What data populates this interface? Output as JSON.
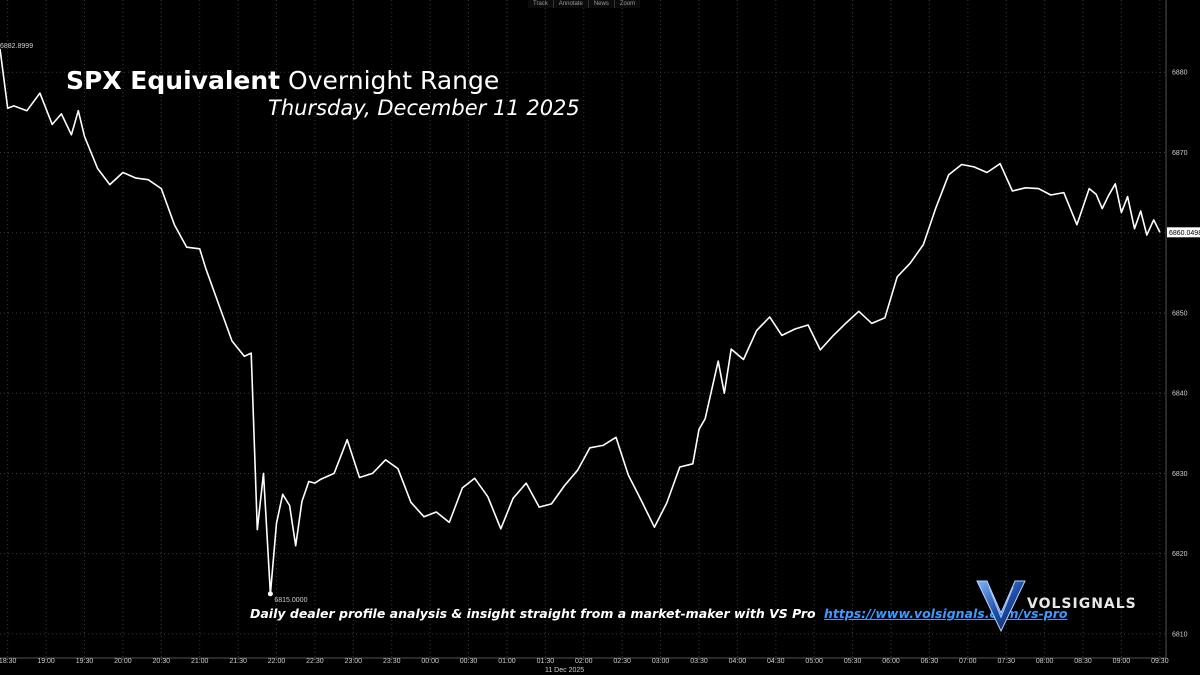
{
  "toolbar": [
    "Track",
    "Annotate",
    "News",
    "Zoom"
  ],
  "title": {
    "bold": "SPX Equivalent",
    "regular": "Overnight Range"
  },
  "subtitle": "Thursday, December 11 2025",
  "promo": {
    "text": "Daily dealer profile analysis & insight straight from a market-maker with VS Pro",
    "link": "https://www.volsignals.com/vs-pro"
  },
  "logo": {
    "text": "VOLSIGNALS",
    "mark": "V"
  },
  "colors": {
    "background": "#000000",
    "line": "#ffffff",
    "grid": "#3a3a3a",
    "link": "#3d9bff"
  },
  "chart_data": {
    "type": "line",
    "title": "SPX Equivalent Overnight Range",
    "subtitle": "Thursday, December 11 2025",
    "xlabel": "11 Dec 2025",
    "ylabel": "",
    "x_ticks": [
      "18:30",
      "19:00",
      "19:30",
      "20:00",
      "20:30",
      "21:00",
      "21:30",
      "22:00",
      "22:30",
      "23:00",
      "23:30",
      "00:00",
      "00:30",
      "01:00",
      "01:30",
      "02:00",
      "02:30",
      "03:00",
      "03:30",
      "04:00",
      "04:30",
      "05:00",
      "05:30",
      "06:00",
      "06:30",
      "07:00",
      "07:30",
      "08:00",
      "08:30",
      "09:00",
      "09:30"
    ],
    "x_range": [
      18.4,
      33.58
    ],
    "y_ticks": [
      6810,
      6820,
      6830,
      6840,
      6850,
      6860,
      6870,
      6880
    ],
    "ylim": [
      6807,
      6889
    ],
    "grid": true,
    "high_label": "6882.8999",
    "low_label": "6815.0000",
    "last_label": "6860.0498",
    "series": [
      {
        "name": "SPX Equivalent",
        "x": [
          18.4,
          18.5,
          18.58,
          18.75,
          18.92,
          19.08,
          19.2,
          19.33,
          19.42,
          19.5,
          19.67,
          19.83,
          20.0,
          20.17,
          20.33,
          20.5,
          20.67,
          20.83,
          21.0,
          21.08,
          21.25,
          21.42,
          21.58,
          21.67,
          21.75,
          21.83,
          21.92,
          22.0,
          22.08,
          22.17,
          22.25,
          22.33,
          22.42,
          22.5,
          22.58,
          22.75,
          22.92,
          23.08,
          23.25,
          23.42,
          23.58,
          23.75,
          23.92,
          24.08,
          24.25,
          24.42,
          24.58,
          24.75,
          24.92,
          25.08,
          25.25,
          25.42,
          25.58,
          25.75,
          25.92,
          26.08,
          26.25,
          26.42,
          26.58,
          26.75,
          26.92,
          27.08,
          27.25,
          27.42,
          27.5,
          27.58,
          27.75,
          27.83,
          27.92,
          28.08,
          28.25,
          28.42,
          28.58,
          28.75,
          28.92,
          29.08,
          29.25,
          29.42,
          29.58,
          29.75,
          29.92,
          30.08,
          30.25,
          30.42,
          30.58,
          30.75,
          30.92,
          31.08,
          31.25,
          31.42,
          31.58,
          31.75,
          31.92,
          32.08,
          32.25,
          32.42,
          32.58,
          32.67,
          32.75,
          32.83,
          32.92,
          33.0,
          33.08,
          33.17,
          33.25,
          33.33,
          33.42,
          33.5
        ],
        "values": [
          6882.9,
          6875.5,
          6875.8,
          6875.2,
          6877.4,
          6873.5,
          6874.8,
          6872.2,
          6875.2,
          6872.0,
          6868.0,
          6866.0,
          6867.5,
          6866.8,
          6866.6,
          6865.5,
          6861.0,
          6858.2,
          6858.0,
          6855.5,
          6851.0,
          6846.5,
          6844.6,
          6845.0,
          6823.0,
          6830.0,
          6815.0,
          6823.8,
          6827.4,
          6826.0,
          6821.0,
          6826.5,
          6829.0,
          6828.8,
          6829.3,
          6830.0,
          6834.2,
          6829.5,
          6830.0,
          6831.7,
          6830.6,
          6826.4,
          6824.6,
          6825.2,
          6823.9,
          6828.2,
          6829.4,
          6827.1,
          6823.1,
          6826.9,
          6828.8,
          6825.8,
          6826.2,
          6828.5,
          6830.4,
          6833.2,
          6833.5,
          6834.5,
          6829.8,
          6826.6,
          6823.3,
          6826.3,
          6830.8,
          6831.2,
          6835.5,
          6836.8,
          6844.0,
          6840.0,
          6845.5,
          6844.2,
          6847.8,
          6849.5,
          6847.2,
          6848.0,
          6848.5,
          6845.4,
          6847.2,
          6848.8,
          6850.2,
          6848.7,
          6849.4,
          6854.5,
          6856.2,
          6858.5,
          6863.0,
          6867.2,
          6868.5,
          6868.2,
          6867.5,
          6868.6,
          6865.2,
          6865.6,
          6865.5,
          6864.7,
          6865.0,
          6861.0,
          6865.5,
          6864.8,
          6863.0,
          6864.6,
          6866.1,
          6862.5,
          6864.5,
          6860.5,
          6862.7,
          6859.7,
          6861.6,
          6860.05
        ]
      }
    ]
  }
}
